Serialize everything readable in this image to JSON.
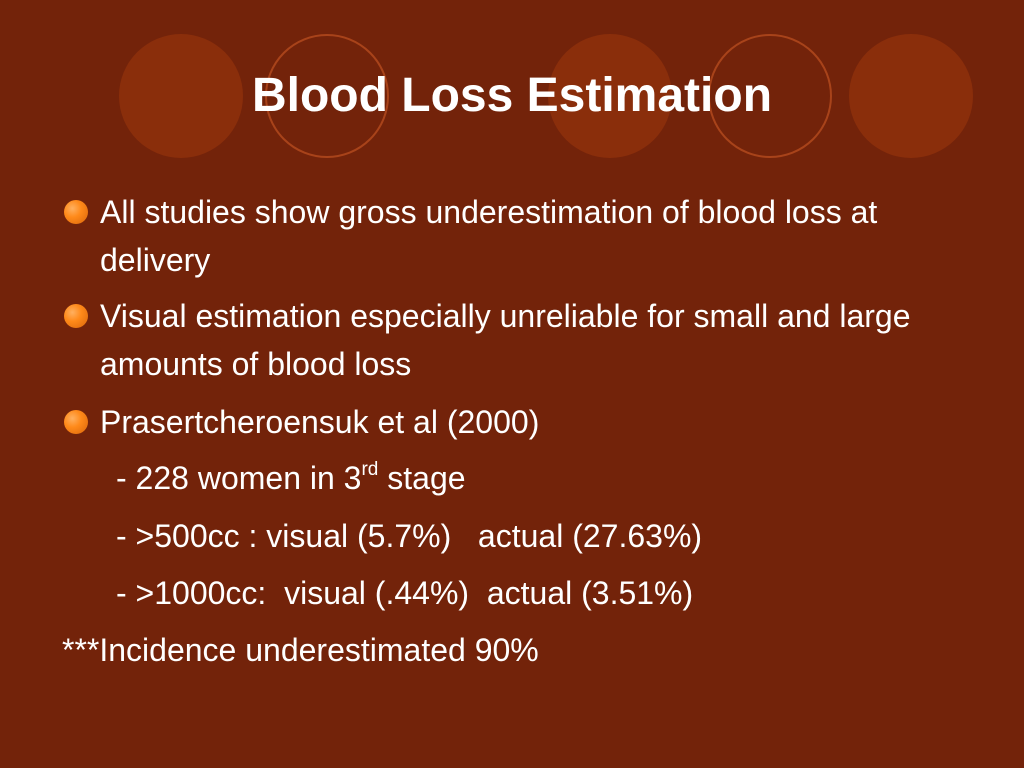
{
  "slide": {
    "title": "Blood Loss Estimation",
    "bullets": [
      {
        "text": "All studies show gross underestimation of blood loss at delivery"
      },
      {
        "text": "Visual estimation especially unreliable for small and large amounts of blood loss"
      },
      {
        "text": "Prasertcheroensuk et al (2000)"
      }
    ],
    "sub_items": {
      "women": {
        "before": "- 228 women in 3",
        "sup": "rd",
        "after": " stage"
      },
      "line_500": "- >500cc : visual (5.7%)   actual (27.63%)",
      "line_1000": "- >1000cc:  visual (.44%)  actual (3.51%)"
    },
    "footnote": "***Incidence underestimated 90%"
  },
  "colors": {
    "background": "#73230a",
    "circle_fill": "#8a2e0b",
    "circle_ring": "#a8431a",
    "bullet": "#ff8a1a",
    "text": "#ffffff"
  }
}
